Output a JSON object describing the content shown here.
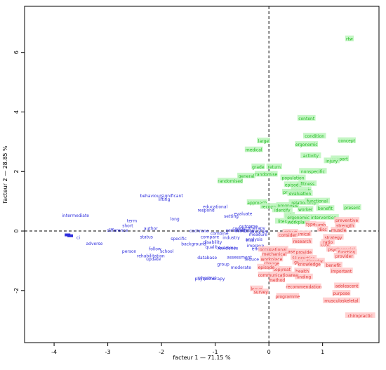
{
  "chart_data": {
    "type": "scatter",
    "title": "",
    "xlabel": "facteur 1 — 71.15 %",
    "ylabel": "facteur 2 — 28.85 %",
    "xlim": [
      -4.55,
      2.05
    ],
    "ylim": [
      -3.75,
      7.55
    ],
    "xticks": [
      -4,
      -3,
      -2,
      -1,
      0,
      1
    ],
    "yticks": [
      -2,
      0,
      2,
      4,
      6
    ],
    "reference_lines": {
      "x": 0,
      "y": 0,
      "style": "dashed"
    },
    "grid": false,
    "colors": {
      "blue": "#3030dd",
      "green": "#22bb22",
      "green_bg": "#bff5bf",
      "red": "#e23a3a",
      "red_bg": "#ffcccc"
    },
    "series": [
      {
        "group": "blue",
        "points": [
          {
            "label": "behavioursignificant",
            "x": -2.0,
            "y": 1.18
          },
          {
            "label": "lifting",
            "x": -1.95,
            "y": 1.06
          },
          {
            "label": "educational",
            "x": -1.0,
            "y": 0.81
          },
          {
            "label": "respond",
            "x": -1.17,
            "y": 0.7
          },
          {
            "label": "intermediate",
            "x": -3.6,
            "y": 0.52
          },
          {
            "label": "term",
            "x": -2.55,
            "y": 0.34
          },
          {
            "label": "long",
            "x": -1.75,
            "y": 0.4
          },
          {
            "label": "short",
            "x": -2.63,
            "y": 0.18
          },
          {
            "label": "author",
            "x": -2.2,
            "y": 0.08
          },
          {
            "label": "difference",
            "x": -2.82,
            "y": 0.02
          },
          {
            "label": "ci",
            "x": -3.55,
            "y": -0.22
          },
          {
            "label": "adverse",
            "x": -3.25,
            "y": -0.42
          },
          {
            "label": "status",
            "x": -2.28,
            "y": -0.2
          },
          {
            "label": "specific",
            "x": -1.68,
            "y": -0.26
          },
          {
            "label": "background",
            "x": -1.4,
            "y": -0.44
          },
          {
            "label": "compare",
            "x": -1.1,
            "y": -0.2
          },
          {
            "label": "cochrane",
            "x": -1.3,
            "y": 0.0
          },
          {
            "label": "industry",
            "x": -0.7,
            "y": -0.22
          },
          {
            "label": "disability",
            "x": -1.05,
            "y": -0.38
          },
          {
            "label": "person",
            "x": -2.6,
            "y": -0.68
          },
          {
            "label": "follow",
            "x": -2.12,
            "y": -0.6
          },
          {
            "label": "school",
            "x": -1.9,
            "y": -0.68
          },
          {
            "label": "rehabilitation",
            "x": -2.2,
            "y": -0.84
          },
          {
            "label": "update",
            "x": -2.15,
            "y": -0.94
          },
          {
            "label": "quality",
            "x": -1.05,
            "y": -0.54
          },
          {
            "label": "evidence",
            "x": -0.75,
            "y": -0.58
          },
          {
            "label": "examine",
            "x": -0.78,
            "y": -0.56
          },
          {
            "label": "database",
            "x": -1.15,
            "y": -0.9
          },
          {
            "label": "group",
            "x": -0.85,
            "y": -1.12
          },
          {
            "label": "assessment",
            "x": -0.55,
            "y": -0.88
          },
          {
            "label": "moderate",
            "x": -0.52,
            "y": -1.22
          },
          {
            "label": "reduce",
            "x": -0.32,
            "y": -0.95
          },
          {
            "label": "physiotherapy",
            "x": -1.1,
            "y": -1.6
          },
          {
            "label": "physical",
            "x": -1.15,
            "y": -1.58
          },
          {
            "label": "combine",
            "x": -0.92,
            "y": -0.08
          },
          {
            "label": "sensitivity",
            "x": -0.6,
            "y": 0.02
          },
          {
            "label": "setting",
            "x": -0.7,
            "y": 0.5
          },
          {
            "label": "evaluate",
            "x": -0.48,
            "y": 0.58
          },
          {
            "label": "condition",
            "x": -0.45,
            "y": 0.0
          },
          {
            "label": "conduct",
            "x": -0.52,
            "y": 0.08
          },
          {
            "label": "measure",
            "x": -0.2,
            "y": -0.12
          },
          {
            "label": "program",
            "x": -0.18,
            "y": -0.02
          },
          {
            "label": "therapy",
            "x": -0.22,
            "y": 0.1
          },
          {
            "label": "analysis",
            "x": -0.28,
            "y": -0.28
          },
          {
            "label": "improve",
            "x": -0.25,
            "y": -0.5
          },
          {
            "label": "effective",
            "x": -0.15,
            "y": -0.6
          },
          {
            "label": "trial",
            "x": -0.35,
            "y": -0.32
          },
          {
            "label": "outcome",
            "x": -0.38,
            "y": 0.15
          },
          {
            "label": "blue point 1",
            "x": -3.75,
            "y": -0.13
          },
          {
            "label": "blue point 2",
            "x": -3.7,
            "y": -0.16
          }
        ]
      },
      {
        "group": "green",
        "points": [
          {
            "label": "rtw",
            "x": 1.5,
            "y": 6.45
          },
          {
            "label": "content",
            "x": 0.7,
            "y": 3.78
          },
          {
            "label": "condition",
            "x": 0.85,
            "y": 3.18
          },
          {
            "label": "concept",
            "x": 1.45,
            "y": 3.03
          },
          {
            "label": "ergonomic",
            "x": 0.7,
            "y": 2.9
          },
          {
            "label": "large",
            "x": -0.1,
            "y": 3.02
          },
          {
            "label": "medical",
            "x": -0.28,
            "y": 2.72
          },
          {
            "label": "activity",
            "x": 0.78,
            "y": 2.52
          },
          {
            "label": "support",
            "x": 1.32,
            "y": 2.42
          },
          {
            "label": "injury",
            "x": 1.17,
            "y": 2.35
          },
          {
            "label": "grade",
            "x": -0.2,
            "y": 2.15
          },
          {
            "label": "return",
            "x": 0.1,
            "y": 2.15
          },
          {
            "label": "nonspecific",
            "x": 0.82,
            "y": 2.0
          },
          {
            "label": "randomise",
            "x": -0.05,
            "y": 1.9
          },
          {
            "label": "general",
            "x": -0.42,
            "y": 1.84
          },
          {
            "label": "population",
            "x": 0.45,
            "y": 1.78
          },
          {
            "label": "randomised",
            "x": -0.72,
            "y": 1.67
          },
          {
            "label": "episode",
            "x": 0.45,
            "y": 1.55
          },
          {
            "label": "fitness",
            "x": 0.72,
            "y": 1.58
          },
          {
            "label": "economic",
            "x": 0.6,
            "y": 1.38
          },
          {
            "label": "prevalence",
            "x": 0.48,
            "y": 1.3
          },
          {
            "label": "evaluation",
            "x": 0.58,
            "y": 1.25
          },
          {
            "label": "approach",
            "x": -0.22,
            "y": 0.95
          },
          {
            "label": "recognise",
            "x": 0.05,
            "y": 0.82
          },
          {
            "label": "prognosis",
            "x": 0.35,
            "y": 0.85
          },
          {
            "label": "relationship",
            "x": 0.65,
            "y": 0.95
          },
          {
            "label": "functional",
            "x": 0.9,
            "y": 1.0
          },
          {
            "label": "present",
            "x": 1.55,
            "y": 0.78
          },
          {
            "label": "worker",
            "x": 0.68,
            "y": 0.72
          },
          {
            "label": "benefit",
            "x": 1.05,
            "y": 0.75
          },
          {
            "label": "identify",
            "x": 0.25,
            "y": 0.7
          },
          {
            "label": "pain",
            "x": 0.38,
            "y": 0.52
          },
          {
            "label": "literature",
            "x": 0.35,
            "y": 0.32
          },
          {
            "label": "workplace",
            "x": 0.55,
            "y": 0.3
          },
          {
            "label": "ergonomic intervention",
            "x": 0.8,
            "y": 0.45
          }
        ]
      },
      {
        "group": "red",
        "points": [
          {
            "label": "preventive",
            "x": 1.45,
            "y": 0.35
          },
          {
            "label": "strength",
            "x": 1.42,
            "y": 0.18
          },
          {
            "label": "numb",
            "x": 0.95,
            "y": 0.2
          },
          {
            "label": "disc",
            "x": 1.0,
            "y": 0.05
          },
          {
            "label": "muscle",
            "x": 1.3,
            "y": 0.02
          },
          {
            "label": "type",
            "x": 0.78,
            "y": 0.22
          },
          {
            "label": "chemical",
            "x": 0.6,
            "y": -0.1
          },
          {
            "label": "strategy",
            "x": 1.2,
            "y": -0.22
          },
          {
            "label": "cohort",
            "x": 0.4,
            "y": -0.05
          },
          {
            "label": "consider",
            "x": 0.35,
            "y": -0.14
          },
          {
            "label": "research",
            "x": 0.62,
            "y": -0.35
          },
          {
            "label": "cost",
            "x": 1.05,
            "y": -0.46
          },
          {
            "label": "psychosocial",
            "x": 1.35,
            "y": -0.62
          },
          {
            "label": "function",
            "x": 1.45,
            "y": -0.72
          },
          {
            "label": "provider",
            "x": 1.4,
            "y": -0.85
          },
          {
            "label": "ratio",
            "x": 1.1,
            "y": -0.38
          },
          {
            "label": "case",
            "x": 0.4,
            "y": -0.7
          },
          {
            "label": "provide",
            "x": 0.65,
            "y": -0.72
          },
          {
            "label": "spinal",
            "x": 0.55,
            "y": -0.9
          },
          {
            "label": "practice",
            "x": 0.7,
            "y": -0.92
          },
          {
            "label": "guideline",
            "x": 0.65,
            "y": -1.05
          },
          {
            "label": "disorder",
            "x": 0.85,
            "y": -1.02
          },
          {
            "label": "knowledge",
            "x": 0.75,
            "y": -1.12
          },
          {
            "label": "benefit",
            "x": 1.2,
            "y": -1.15
          },
          {
            "label": "important",
            "x": 1.35,
            "y": -1.35
          },
          {
            "label": "health",
            "x": 0.62,
            "y": -1.35
          },
          {
            "label": "finding",
            "x": 0.65,
            "y": -1.55
          },
          {
            "label": "great",
            "x": 0.3,
            "y": -1.3
          },
          {
            "label": "workplace",
            "x": 0.05,
            "y": -0.95
          },
          {
            "label": "change",
            "x": 0.05,
            "y": -1.1
          },
          {
            "label": "occupational",
            "x": 0.08,
            "y": -0.62
          },
          {
            "label": "mechanical",
            "x": 0.1,
            "y": -0.78
          },
          {
            "label": "top",
            "x": 0.15,
            "y": -1.3
          },
          {
            "label": "communication",
            "x": 0.1,
            "y": -1.48
          },
          {
            "label": "method",
            "x": 0.15,
            "y": -1.65
          },
          {
            "label": "recommendation",
            "x": 0.65,
            "y": -1.88
          },
          {
            "label": "adolescent",
            "x": 1.45,
            "y": -1.85
          },
          {
            "label": "purpose",
            "x": 1.35,
            "y": -2.1
          },
          {
            "label": "musculoskeletal",
            "x": 1.35,
            "y": -2.35
          },
          {
            "label": "programme",
            "x": 0.35,
            "y": -2.2
          },
          {
            "label": "leave",
            "x": -0.23,
            "y": -1.95
          },
          {
            "label": "chiropractic",
            "x": 1.7,
            "y": -2.85
          },
          {
            "label": "area",
            "x": 0.45,
            "y": -1.48
          },
          {
            "label": "survey",
            "x": -0.15,
            "y": -2.05
          },
          {
            "label": "episode",
            "x": -0.05,
            "y": -1.22
          }
        ]
      }
    ]
  }
}
